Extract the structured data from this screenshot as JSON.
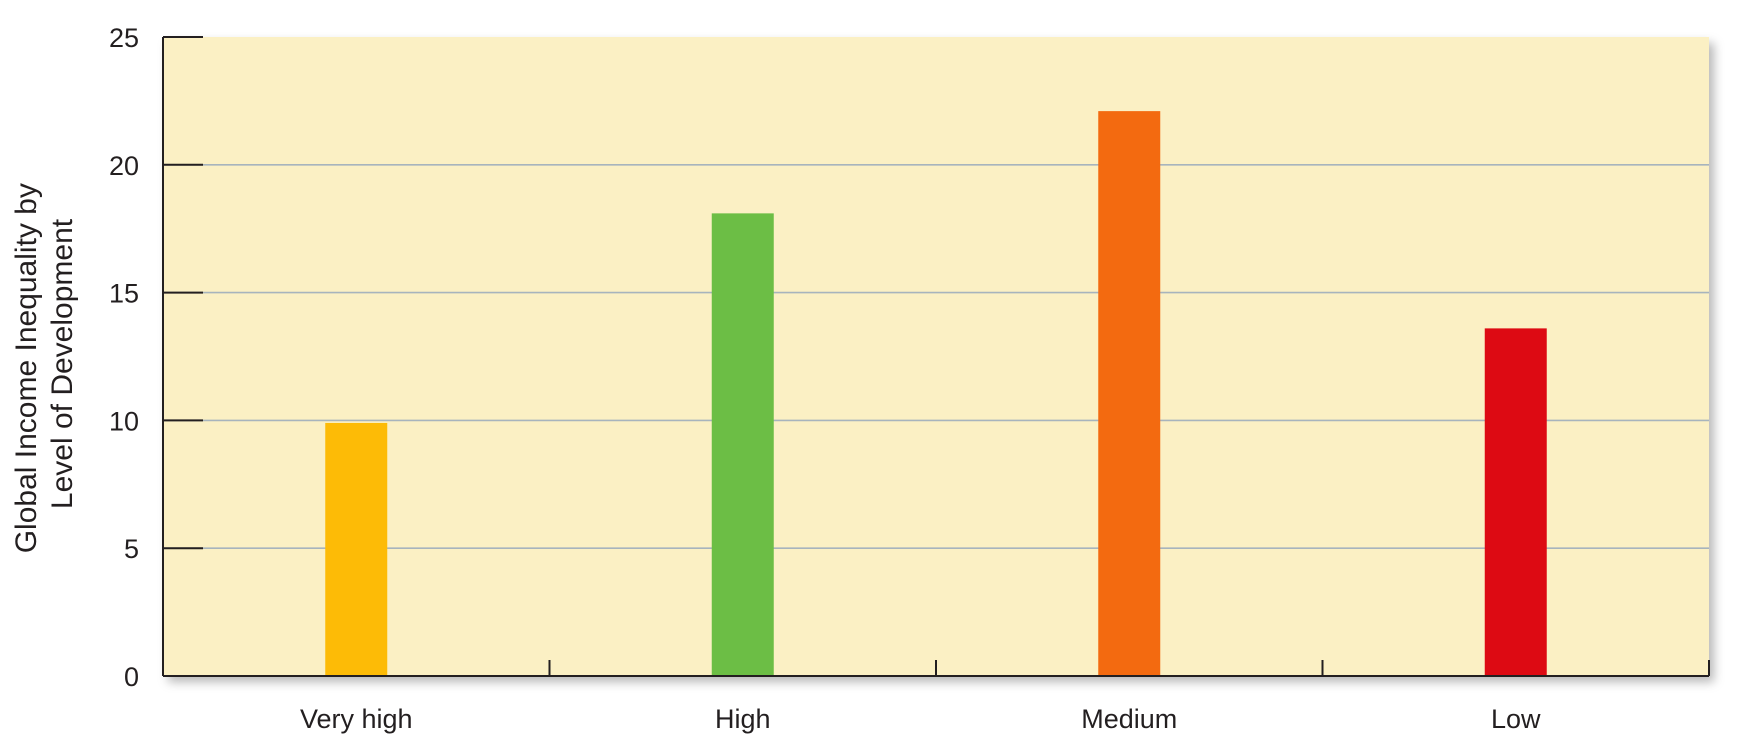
{
  "chart_data": {
    "type": "bar",
    "title": "",
    "xlabel": "",
    "ylabel_lines": [
      "Global Income Inequality by",
      "Level of Development"
    ],
    "categories": [
      "Very high",
      "High",
      "Medium",
      "Low"
    ],
    "values": [
      9.9,
      18.1,
      22.1,
      13.6
    ],
    "ylim": [
      0,
      25
    ],
    "yticks": [
      0,
      5,
      10,
      15,
      20,
      25
    ],
    "grid": true,
    "legend": "none",
    "colors": {
      "bars": [
        "#FDBB06",
        "#6CBE45",
        "#F36A10",
        "#DD0A13"
      ],
      "plot_background": "#FBF0C4",
      "gridline": "#A7B4BD",
      "axis": "#231F20"
    }
  }
}
